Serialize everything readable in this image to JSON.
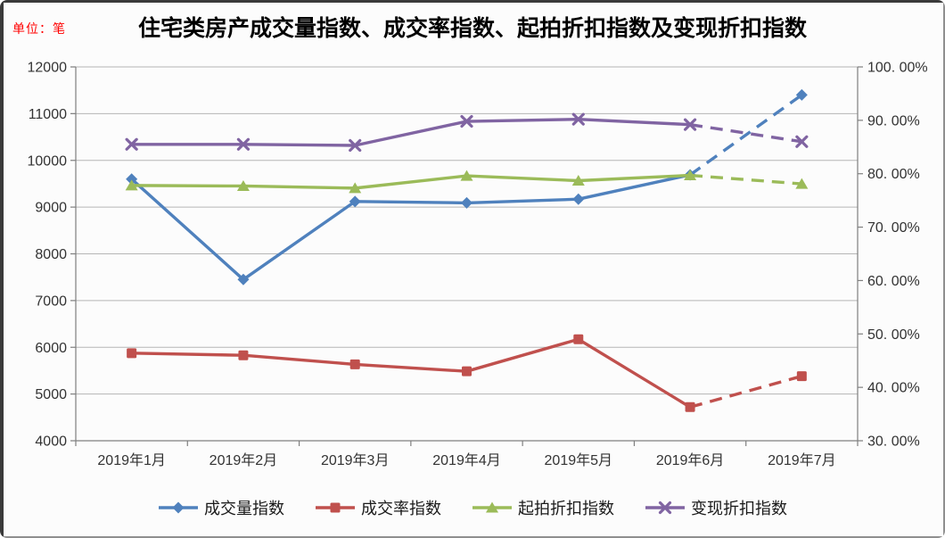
{
  "unit_label": "单位：笔",
  "colors": {
    "volume_blue": "#4F81BD",
    "rate_red": "#C0504D",
    "start_discount_green": "#9BBB59",
    "realize_discount_purple": "#8064A2",
    "gridline": "#b5b5b5",
    "axis": "#7f7f7f",
    "unit_label_red": "#ff0000",
    "title_black": "#000000"
  },
  "chart_data": {
    "type": "line",
    "title": "住宅类房产成交量指数、成交率指数、起拍折扣指数及变现折扣指数",
    "categories": [
      "2019年1月",
      "2019年2月",
      "2019年3月",
      "2019年4月",
      "2019年5月",
      "2019年6月",
      "2019年7月"
    ],
    "series": [
      {
        "name": "成交量指数",
        "axis": "left",
        "color": "#4F81BD",
        "marker": "diamond",
        "values": [
          9600,
          7450,
          9120,
          9090,
          9170,
          9690,
          11400
        ],
        "dashed_from_index": 5
      },
      {
        "name": "成交率指数",
        "axis": "right",
        "color": "#C0504D",
        "marker": "square",
        "values": [
          46.4,
          46.0,
          44.3,
          43.0,
          49.0,
          36.3,
          42.1
        ],
        "dashed_from_index": 5
      },
      {
        "name": "起拍折扣指数",
        "axis": "right",
        "color": "#9BBB59",
        "marker": "triangle",
        "values": [
          77.8,
          77.7,
          77.3,
          79.6,
          78.7,
          79.7,
          78.1
        ],
        "dashed_from_index": 5
      },
      {
        "name": "变现折扣指数",
        "axis": "right",
        "color": "#8064A2",
        "marker": "x",
        "values": [
          85.5,
          85.5,
          85.3,
          89.8,
          90.2,
          89.2,
          86.0
        ],
        "dashed_from_index": 5
      }
    ],
    "left_axis": {
      "min": 4000,
      "max": 12000,
      "step": 1000,
      "tick_labels": [
        "12000",
        "11000",
        "10000",
        "9000",
        "8000",
        "7000",
        "6000",
        "5000",
        "4000"
      ]
    },
    "right_axis": {
      "min": 30,
      "max": 100,
      "step": 10,
      "tick_labels": [
        "100. 00%",
        "90. 00%",
        "80. 00%",
        "70. 00%",
        "60. 00%",
        "50. 00%",
        "40. 00%",
        "30. 00%"
      ]
    },
    "grid": true,
    "legend_position": "bottom"
  }
}
